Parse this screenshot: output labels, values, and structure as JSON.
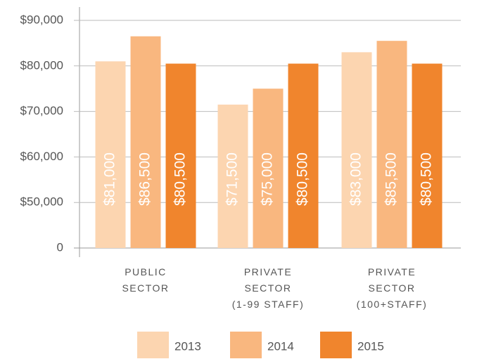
{
  "chart_data": {
    "type": "bar",
    "categories": [
      [
        "PUBLIC",
        "SECTOR"
      ],
      [
        "PRIVATE",
        "SECTOR",
        "(1-99 STAFF)"
      ],
      [
        "PRIVATE",
        "SECTOR",
        "(100+STAFF)"
      ]
    ],
    "series": [
      {
        "name": "2013",
        "color": "#fcd5b0",
        "values": [
          81000,
          71500,
          83000
        ],
        "value_labels": [
          "$81,000",
          "$71,500",
          "$83,000"
        ]
      },
      {
        "name": "2014",
        "color": "#f9b77f",
        "values": [
          86500,
          75000,
          85500
        ],
        "value_labels": [
          "$86,500",
          "$75,000",
          "$85,500"
        ]
      },
      {
        "name": "2015",
        "color": "#f0852d",
        "values": [
          80500,
          80500,
          80500
        ],
        "value_labels": [
          "$80,500",
          "$80,500",
          "$80,500"
        ]
      }
    ],
    "ylim": [
      0,
      90000
    ],
    "yticks": [
      0,
      {
        "value": 50000,
        "label": "$50,000"
      },
      {
        "value": 60000,
        "label": "$60,000"
      },
      {
        "value": 70000,
        "label": "$70,000"
      },
      {
        "value": 80000,
        "label": "$80,000"
      },
      {
        "value": 90000,
        "label": "$90,000"
      }
    ],
    "grid": true,
    "legend": "bottom"
  }
}
